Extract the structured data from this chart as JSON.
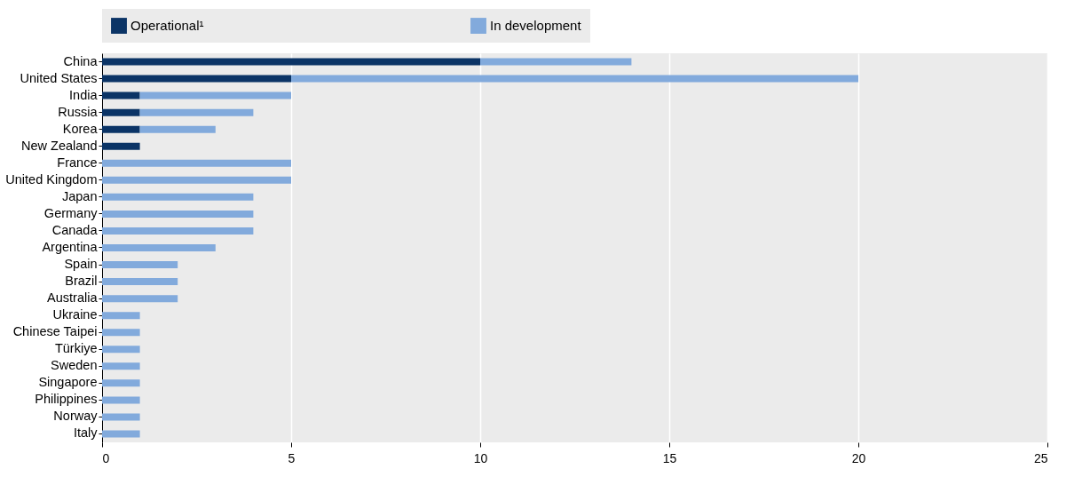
{
  "chart_data": {
    "type": "bar",
    "orientation": "horizontal",
    "stacked": true,
    "categories": [
      "China",
      "United States",
      "India",
      "Russia",
      "Korea",
      "New Zealand",
      "France",
      "United Kingdom",
      "Japan",
      "Germany",
      "Canada",
      "Argentina",
      "Spain",
      "Brazil",
      "Australia",
      "Ukraine",
      "Chinese Taipei",
      "Türkiye",
      "Sweden",
      "Singapore",
      "Philippines",
      "Norway",
      "Italy"
    ],
    "series": [
      {
        "name": "Operational¹",
        "color": "#0b3466",
        "values": [
          10,
          5,
          1,
          1,
          1,
          1,
          0,
          0,
          0,
          0,
          0,
          0,
          0,
          0,
          0,
          0,
          0,
          0,
          0,
          0,
          0,
          0,
          0
        ]
      },
      {
        "name": "In development",
        "color": "#82aadc",
        "values": [
          4,
          15,
          4,
          3,
          2,
          0,
          5,
          5,
          4,
          4,
          4,
          3,
          2,
          2,
          2,
          1,
          1,
          1,
          1,
          1,
          1,
          1,
          1
        ]
      }
    ],
    "xlim": [
      0,
      25
    ],
    "xticks": [
      0,
      5,
      10,
      15,
      20,
      25
    ],
    "grid": "x",
    "legend": "top"
  }
}
